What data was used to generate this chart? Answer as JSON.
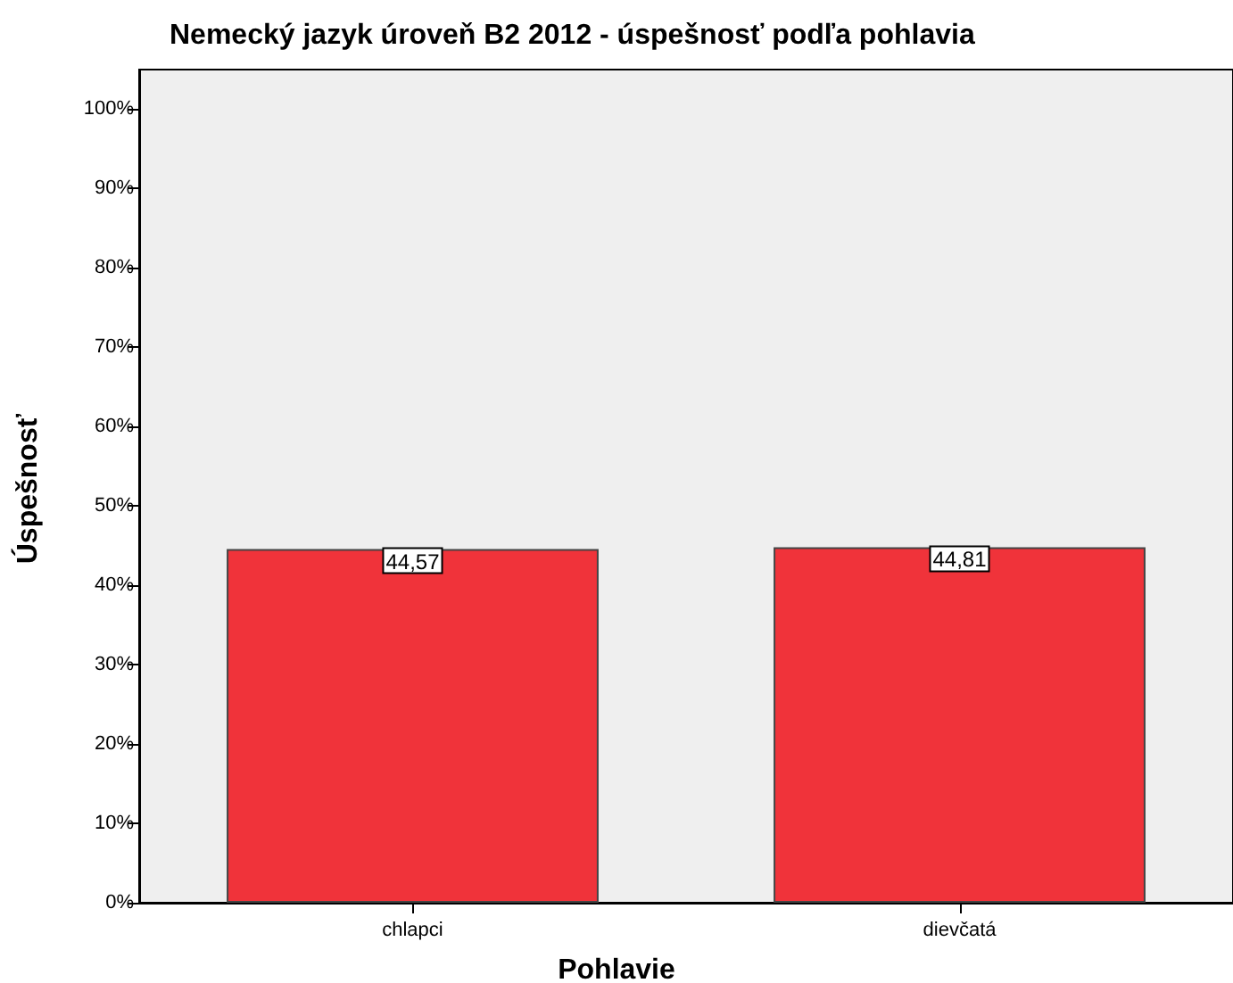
{
  "chart_data": {
    "type": "bar",
    "title": "Nemecký jazyk úroveň B2 2012 - úspešnosť podľa pohlavia",
    "xlabel": "Pohlavie",
    "ylabel": "Úspešnosť",
    "categories": [
      "chlapci",
      "dievčatá"
    ],
    "values": [
      44.57,
      44.81
    ],
    "value_labels": [
      "44,57",
      "44,81"
    ],
    "color": "#f0333a",
    "ylim": [
      0,
      105
    ],
    "yticks": [
      {
        "value": 0,
        "label": "0%"
      },
      {
        "value": 10,
        "label": "10%"
      },
      {
        "value": 20,
        "label": "20%"
      },
      {
        "value": 30,
        "label": "30%"
      },
      {
        "value": 40,
        "label": "40%"
      },
      {
        "value": 50,
        "label": "50%"
      },
      {
        "value": 60,
        "label": "60%"
      },
      {
        "value": 70,
        "label": "70%"
      },
      {
        "value": 80,
        "label": "80%"
      },
      {
        "value": 90,
        "label": "90%"
      },
      {
        "value": 100,
        "label": "100%"
      }
    ]
  }
}
